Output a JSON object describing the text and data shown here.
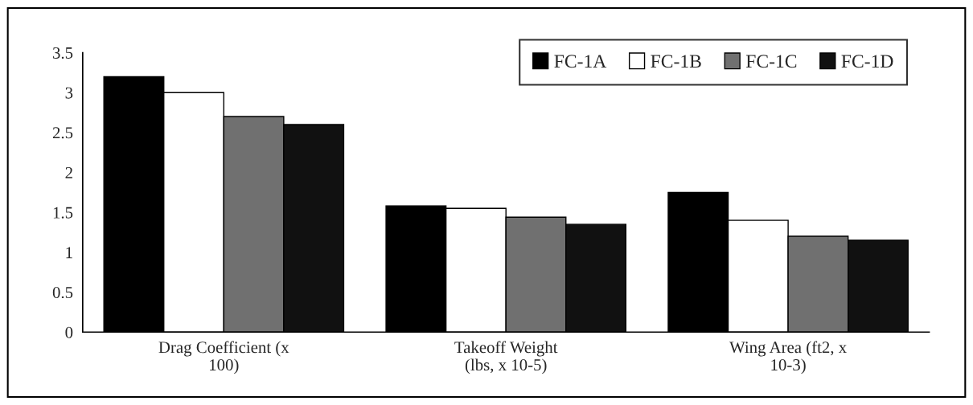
{
  "chart_data": {
    "type": "bar",
    "categories": [
      "Drag Coefficient (x\n100)",
      "Takeoff Weight\n(lbs, x 10-5)",
      "Wing Area (ft2, x\n10-3)"
    ],
    "series": [
      {
        "name": "FC-1A",
        "color": "#000000",
        "values": [
          3.2,
          1.58,
          1.75
        ]
      },
      {
        "name": "FC-1B",
        "color": "#ffffff",
        "values": [
          3.0,
          1.55,
          1.4
        ]
      },
      {
        "name": "FC-1C",
        "color": "#707070",
        "values": [
          2.7,
          1.44,
          1.2
        ]
      },
      {
        "name": "FC-1D",
        "color": "#111111",
        "values": [
          2.6,
          1.35,
          1.15
        ]
      }
    ],
    "ylim": [
      0,
      3.5
    ],
    "yticks": [
      0,
      0.5,
      1,
      1.5,
      2,
      2.5,
      3,
      3.5
    ],
    "legend": "top right",
    "grid": false
  }
}
